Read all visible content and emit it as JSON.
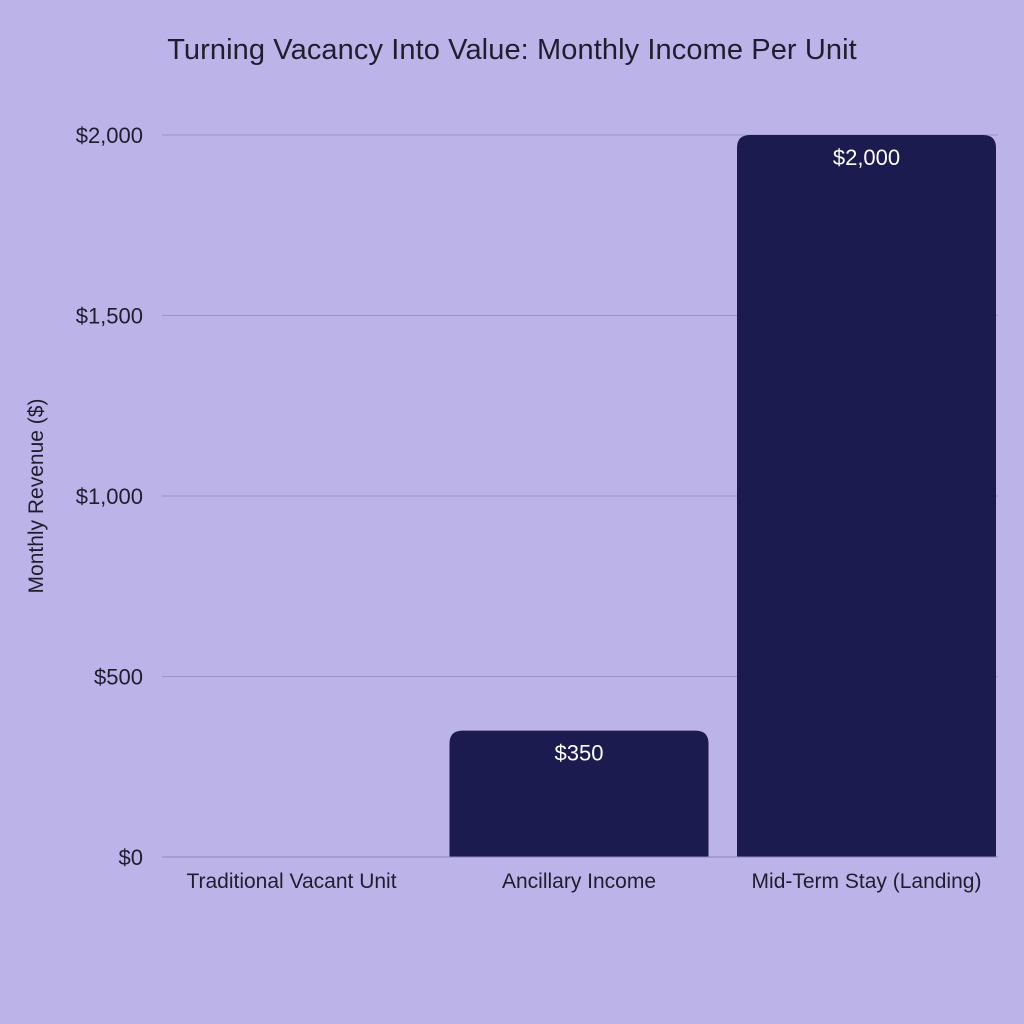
{
  "chart_data": {
    "type": "bar",
    "title": "Turning Vacancy Into Value: Monthly Income Per Unit",
    "xlabel": "",
    "ylabel": "Monthly Revenue ($)",
    "categories": [
      "Traditional Vacant Unit",
      "Ancillary Income",
      "Mid-Term Stay (Landing)"
    ],
    "values": [
      0,
      350,
      2000
    ],
    "value_labels": [
      "",
      "$350",
      "$2,000"
    ],
    "ylim": [
      0,
      2000
    ],
    "yticks": [
      0,
      500,
      1000,
      1500,
      2000
    ],
    "ytick_labels": [
      "$0",
      "$500",
      "$1,000",
      "$1,500",
      "$2,000"
    ],
    "grid": true,
    "legend": "none",
    "colors": {
      "background": "#bcb4e8",
      "bar": "#1b1b4f",
      "bar_label": "#ffffff",
      "gridline": "#9a92cc",
      "axis_line": "#8c84c2",
      "text": "#1e1e2e"
    }
  }
}
